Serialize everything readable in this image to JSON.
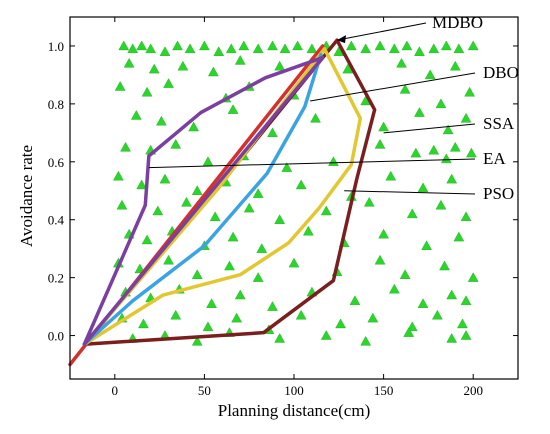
{
  "chart_data": {
    "type": "line",
    "title": "",
    "xlabel": "Planning distance(cm)",
    "ylabel": "Avoidance rate",
    "xlim": [
      -25,
      225
    ],
    "ylim": [
      -0.15,
      1.1
    ],
    "xticks": [
      0,
      50,
      100,
      150,
      200
    ],
    "yticks": [
      0.0,
      0.2,
      0.4,
      0.6,
      0.8,
      1.0
    ],
    "xtick_labels": [
      "0",
      "50",
      "100",
      "150",
      "200"
    ],
    "ytick_labels": [
      "0.0",
      "0.2",
      "0.4",
      "0.6",
      "0.8",
      "1.0"
    ],
    "grid": false,
    "series": [
      {
        "name": "MDBO",
        "color": "#7a1e1e",
        "values": [
          [
            -17,
            -0.03
          ],
          [
            83,
            0.01
          ],
          [
            122,
            0.19
          ],
          [
            135,
            0.54
          ],
          [
            145,
            0.78
          ],
          [
            124,
            1.02
          ],
          [
            48,
            0.44
          ],
          [
            -17,
            -0.03
          ]
        ]
      },
      {
        "name": "DBO",
        "color": "#d4302c",
        "values": [
          [
            -25,
            -0.1
          ],
          [
            116,
            1.0
          ]
        ]
      },
      {
        "name": "SSA",
        "color": "#e2c730",
        "values": [
          [
            -17,
            -0.03
          ],
          [
            27,
            0.14
          ],
          [
            70,
            0.21
          ],
          [
            97,
            0.32
          ],
          [
            114,
            0.44
          ],
          [
            132,
            0.59
          ],
          [
            137,
            0.75
          ],
          [
            117,
            0.99
          ],
          [
            58,
            0.51
          ],
          [
            -17,
            -0.03
          ]
        ]
      },
      {
        "name": "EA",
        "color": "#3aa3e3",
        "values": [
          [
            -17,
            -0.03
          ],
          [
            10,
            0.12
          ],
          [
            50,
            0.31
          ],
          [
            85,
            0.56
          ],
          [
            106,
            0.79
          ],
          [
            115,
            0.97
          ]
        ]
      },
      {
        "name": "PSO",
        "color": "#7b3fa0",
        "values": [
          [
            -17,
            -0.03
          ],
          [
            17,
            0.45
          ],
          [
            19,
            0.62
          ],
          [
            48,
            0.77
          ],
          [
            84,
            0.89
          ],
          [
            116,
            0.96
          ],
          [
            -17,
            -0.03
          ]
        ]
      }
    ],
    "scatter_marker_color": "#2bd62b",
    "scatter_points": [
      [
        5,
        1.0
      ],
      [
        10,
        0.99
      ],
      [
        15,
        1.0
      ],
      [
        20,
        0.99
      ],
      [
        28,
        0.98
      ],
      [
        35,
        1.0
      ],
      [
        42,
        0.99
      ],
      [
        50,
        1.0
      ],
      [
        58,
        0.98
      ],
      [
        65,
        0.99
      ],
      [
        72,
        1.0
      ],
      [
        80,
        0.99
      ],
      [
        88,
        1.0
      ],
      [
        95,
        0.99
      ],
      [
        102,
        1.0
      ],
      [
        110,
        0.99
      ],
      [
        118,
        1.0
      ],
      [
        125,
        0.98
      ],
      [
        132,
        1.0
      ],
      [
        140,
        0.99
      ],
      [
        148,
        1.0
      ],
      [
        156,
        0.99
      ],
      [
        163,
        1.0
      ],
      [
        170,
        0.98
      ],
      [
        178,
        0.99
      ],
      [
        185,
        1.0
      ],
      [
        192,
        0.99
      ],
      [
        200,
        1.0
      ],
      [
        8,
        0.94
      ],
      [
        22,
        0.92
      ],
      [
        38,
        0.93
      ],
      [
        55,
        0.91
      ],
      [
        70,
        0.95
      ],
      [
        92,
        0.93
      ],
      [
        130,
        0.92
      ],
      [
        160,
        0.94
      ],
      [
        176,
        0.9
      ],
      [
        190,
        0.93
      ],
      [
        3,
        0.86
      ],
      [
        18,
        0.84
      ],
      [
        30,
        0.87
      ],
      [
        62,
        0.82
      ],
      [
        75,
        0.86
      ],
      [
        100,
        0.83
      ],
      [
        140,
        0.81
      ],
      [
        162,
        0.85
      ],
      [
        182,
        0.8
      ],
      [
        198,
        0.84
      ],
      [
        12,
        0.76
      ],
      [
        26,
        0.74
      ],
      [
        44,
        0.72
      ],
      [
        66,
        0.78
      ],
      [
        88,
        0.7
      ],
      [
        112,
        0.75
      ],
      [
        150,
        0.72
      ],
      [
        170,
        0.77
      ],
      [
        186,
        0.71
      ],
      [
        196,
        0.75
      ],
      [
        6,
        0.65
      ],
      [
        20,
        0.64
      ],
      [
        34,
        0.66
      ],
      [
        52,
        0.6
      ],
      [
        72,
        0.62
      ],
      [
        96,
        0.58
      ],
      [
        122,
        0.6
      ],
      [
        148,
        0.66
      ],
      [
        168,
        0.63
      ],
      [
        178,
        0.64
      ],
      [
        185,
        0.61
      ],
      [
        190,
        0.65
      ],
      [
        199,
        0.63
      ],
      [
        2,
        0.55
      ],
      [
        15,
        0.52
      ],
      [
        28,
        0.54
      ],
      [
        46,
        0.5
      ],
      [
        62,
        0.53
      ],
      [
        80,
        0.49
      ],
      [
        104,
        0.52
      ],
      [
        132,
        0.48
      ],
      [
        154,
        0.55
      ],
      [
        172,
        0.51
      ],
      [
        188,
        0.54
      ],
      [
        4,
        0.45
      ],
      [
        24,
        0.43
      ],
      [
        40,
        0.46
      ],
      [
        56,
        0.41
      ],
      [
        75,
        0.44
      ],
      [
        92,
        0.4
      ],
      [
        118,
        0.43
      ],
      [
        142,
        0.46
      ],
      [
        166,
        0.42
      ],
      [
        182,
        0.45
      ],
      [
        196,
        0.41
      ],
      [
        8,
        0.35
      ],
      [
        18,
        0.33
      ],
      [
        32,
        0.36
      ],
      [
        50,
        0.31
      ],
      [
        66,
        0.34
      ],
      [
        82,
        0.3
      ],
      [
        108,
        0.36
      ],
      [
        128,
        0.32
      ],
      [
        150,
        0.35
      ],
      [
        174,
        0.31
      ],
      [
        192,
        0.34
      ],
      [
        2,
        0.25
      ],
      [
        14,
        0.23
      ],
      [
        30,
        0.26
      ],
      [
        46,
        0.21
      ],
      [
        64,
        0.24
      ],
      [
        80,
        0.2
      ],
      [
        100,
        0.25
      ],
      [
        124,
        0.22
      ],
      [
        148,
        0.26
      ],
      [
        162,
        0.21
      ],
      [
        184,
        0.24
      ],
      [
        200,
        0.2
      ],
      [
        6,
        0.15
      ],
      [
        20,
        0.13
      ],
      [
        36,
        0.16
      ],
      [
        54,
        0.11
      ],
      [
        70,
        0.14
      ],
      [
        88,
        0.1
      ],
      [
        110,
        0.15
      ],
      [
        134,
        0.12
      ],
      [
        156,
        0.16
      ],
      [
        172,
        0.11
      ],
      [
        188,
        0.14
      ],
      [
        196,
        0.12
      ],
      [
        4,
        0.06
      ],
      [
        16,
        0.04
      ],
      [
        34,
        0.07
      ],
      [
        52,
        0.03
      ],
      [
        68,
        0.06
      ],
      [
        86,
        0.02
      ],
      [
        104,
        0.07
      ],
      [
        126,
        0.04
      ],
      [
        144,
        0.06
      ],
      [
        166,
        0.03
      ],
      [
        180,
        0.07
      ],
      [
        194,
        0.04
      ],
      [
        10,
        -0.01
      ],
      [
        28,
        0.0
      ],
      [
        46,
        -0.02
      ],
      [
        64,
        0.01
      ],
      [
        92,
        -0.01
      ],
      [
        118,
        0.0
      ],
      [
        140,
        -0.02
      ],
      [
        164,
        0.01
      ],
      [
        188,
        -0.01
      ],
      [
        196,
        0.0
      ]
    ],
    "annotations": [
      {
        "text": "MDBO",
        "point": [
          124,
          1.02
        ]
      },
      {
        "text": "DBO",
        "point": [
          109,
          0.81
        ]
      },
      {
        "text": "SSA",
        "point": [
          150,
          0.7
        ]
      },
      {
        "text": "EA",
        "point": [
          19,
          0.58
        ]
      },
      {
        "text": "PSO",
        "point": [
          128,
          0.5
        ]
      }
    ]
  }
}
